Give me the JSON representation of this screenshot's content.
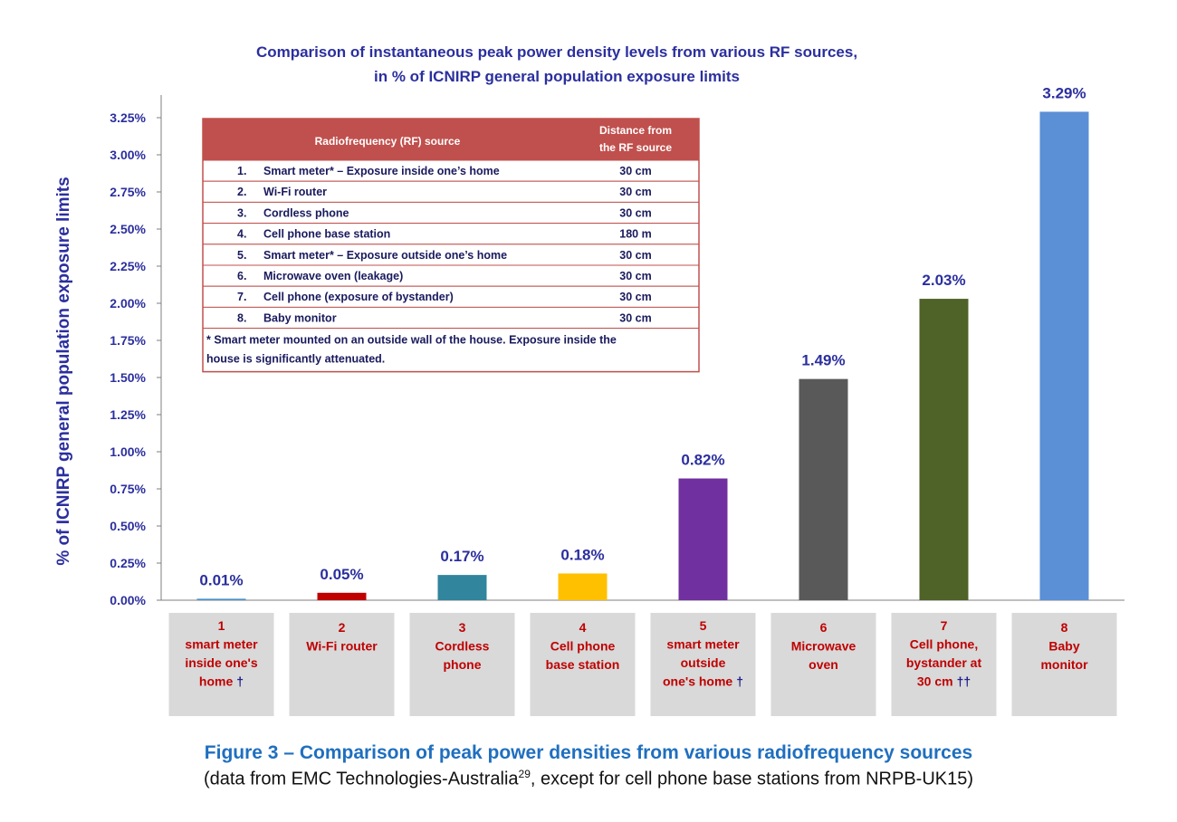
{
  "chart_data": {
    "type": "bar",
    "title_lines": [
      "Comparison of instantaneous peak power density levels from various RF sources,",
      "in % of ICNIRP general population exposure limits"
    ],
    "ylabel": "% of ICNIRP general population  exposure limits",
    "ylim": [
      0,
      3.25
    ],
    "yticks": [
      "0.00%",
      "0.25%",
      "0.50%",
      "0.75%",
      "1.00%",
      "1.25%",
      "1.50%",
      "1.75%",
      "2.00%",
      "2.25%",
      "2.50%",
      "2.75%",
      "3.00%",
      "3.25%"
    ],
    "grid": false,
    "categories": [
      {
        "lines": [
          "1",
          "smart meter",
          "inside one's",
          "home"
        ],
        "dagger": "†"
      },
      {
        "lines": [
          "2",
          "Wi-Fi router"
        ],
        "dagger": ""
      },
      {
        "lines": [
          "3",
          "Cordless",
          "phone"
        ],
        "dagger": ""
      },
      {
        "lines": [
          "4",
          "Cell phone",
          "base station"
        ],
        "dagger": ""
      },
      {
        "lines": [
          "5",
          "smart meter",
          "outside",
          "one's home"
        ],
        "dagger": "†"
      },
      {
        "lines": [
          "6",
          "Microwave",
          "oven"
        ],
        "dagger": ""
      },
      {
        "lines": [
          "7",
          "Cell phone,",
          "bystander at",
          "30 cm"
        ],
        "dagger": "††"
      },
      {
        "lines": [
          "8",
          "Baby",
          "monitor"
        ],
        "dagger": ""
      }
    ],
    "values": [
      0.01,
      0.05,
      0.17,
      0.18,
      0.82,
      1.49,
      2.03,
      3.29
    ],
    "value_labels": [
      "0.01%",
      "0.05%",
      "0.17%",
      "0.18%",
      "0.82%",
      "1.49%",
      "2.03%",
      "3.29%"
    ],
    "colors": [
      "#4a90c8",
      "#c00000",
      "#31859c",
      "#ffc000",
      "#7030a0",
      "#595959",
      "#4f6228",
      "#5b8fd6"
    ]
  },
  "table": {
    "header_source": "Radiofrequency (RF) source",
    "header_distance_lines": [
      "Distance from",
      "the RF source"
    ],
    "rows": [
      {
        "num": "1.",
        "source": "Smart meter* – Exposure inside one’s home",
        "distance": "30 cm"
      },
      {
        "num": "2.",
        "source": "Wi-Fi router",
        "distance": "30 cm"
      },
      {
        "num": "3.",
        "source": "Cordless phone",
        "distance": "30 cm"
      },
      {
        "num": "4.",
        "source": "Cell phone base station",
        "distance": "180 m"
      },
      {
        "num": "5.",
        "source": "Smart meter* – Exposure outside one’s home",
        "distance": "30 cm"
      },
      {
        "num": "6.",
        "source": "Microwave oven (leakage)",
        "distance": "30 cm"
      },
      {
        "num": "7.",
        "source": "Cell phone (exposure of bystander)",
        "distance": "30 cm"
      },
      {
        "num": "8.",
        "source": "Baby monitor",
        "distance": "30 cm"
      }
    ],
    "note_lines": [
      "* Smart meter mounted on an outside wall of the house. Exposure inside the",
      "house is significantly attenuated."
    ],
    "header_color": "#c0504d",
    "border_color": "#c0504d"
  },
  "caption": {
    "title": "Figure 3 – Comparison of peak power densities from various radiofrequency sources",
    "sub_before": "(data from EMC Technologies-Australia",
    "sub_sup": "29",
    "sub_after": ", except for cell phone base stations from NRPB-UK15)"
  }
}
